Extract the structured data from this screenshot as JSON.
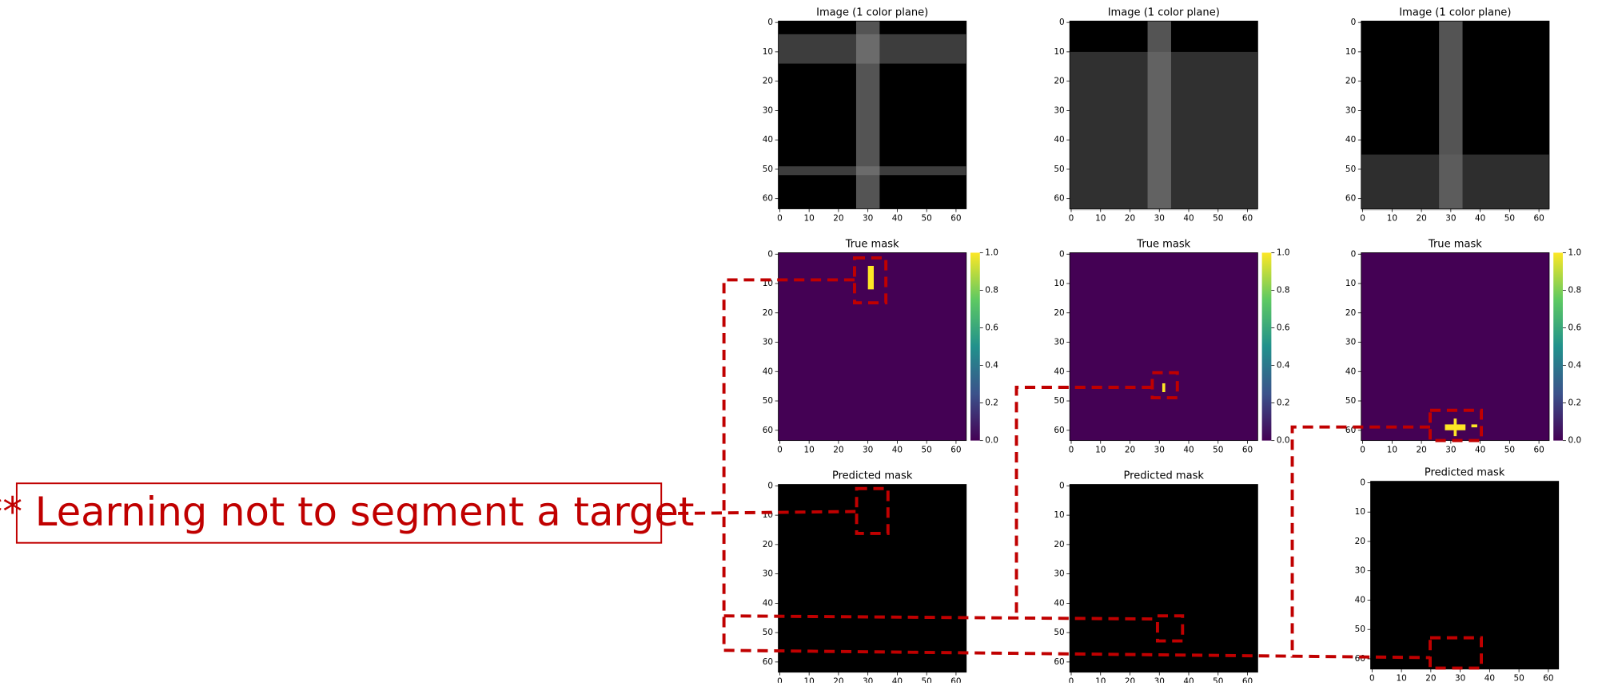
{
  "columns": [
    {
      "image_title": "Image (1 color plane)",
      "true_mask_title": "True mask",
      "predicted_mask_title": "Predicted mask"
    },
    {
      "image_title": "Image (1 color plane)",
      "true_mask_title": "True mask",
      "predicted_mask_title": "Predicted mask"
    },
    {
      "image_title": "Image (1 color plane)",
      "true_mask_title": "True mask",
      "predicted_mask_title": "Predicted mask"
    }
  ],
  "axis_ticks": [
    "0",
    "10",
    "20",
    "30",
    "40",
    "50",
    "60"
  ],
  "colorbar_ticks": [
    "0.0",
    "0.2",
    "0.4",
    "0.6",
    "0.8",
    "1.0"
  ],
  "annotation": "** Learning not to segment a target"
}
